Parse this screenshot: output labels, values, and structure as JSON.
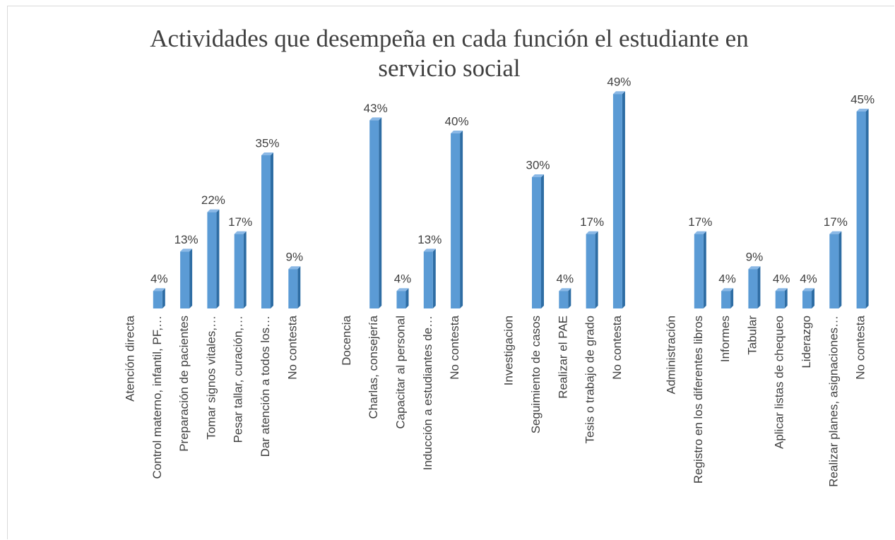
{
  "chart_data": {
    "type": "bar",
    "title": "Actividades que desempeña en cada función el estudiante en servicio social",
    "categories": [
      "Atención directa",
      "Control materno, infantil, PF,…",
      "Preparación de pacientes",
      "Tomar signos vitales,…",
      "Pesar tallar, curación,…",
      "Dar atención a todos los…",
      "No contesta",
      null,
      "Docencia",
      "Charlas, consejería",
      "Capacitar al personal",
      "Inducción a estudiantes de…",
      "No contesta",
      null,
      "Investigacion",
      "Seguimiento de casos",
      "Realizar el PAE",
      "Tesis o trabajo de grado",
      "No contesta",
      null,
      "Administración",
      "Registro en los diferentes libros",
      "Informes",
      "Tabular",
      "Aplicar listas de chequeo",
      "Liderazgo",
      "Realizar planes, asignaciones…",
      "No contesta"
    ],
    "values": [
      null,
      4,
      13,
      22,
      17,
      35,
      9,
      null,
      null,
      43,
      4,
      13,
      40,
      null,
      null,
      30,
      4,
      17,
      49,
      null,
      null,
      17,
      4,
      9,
      4,
      4,
      17,
      45
    ],
    "value_labels": [
      null,
      "4%",
      "13%",
      "22%",
      "17%",
      "35%",
      "9%",
      null,
      null,
      "43%",
      "4%",
      "13%",
      "40%",
      null,
      null,
      "30%",
      "4%",
      "17%",
      "49%",
      null,
      null,
      "17%",
      "4%",
      "9%",
      "4%",
      "4%",
      "17%",
      "45%"
    ],
    "color": "#5b9bd5"
  }
}
